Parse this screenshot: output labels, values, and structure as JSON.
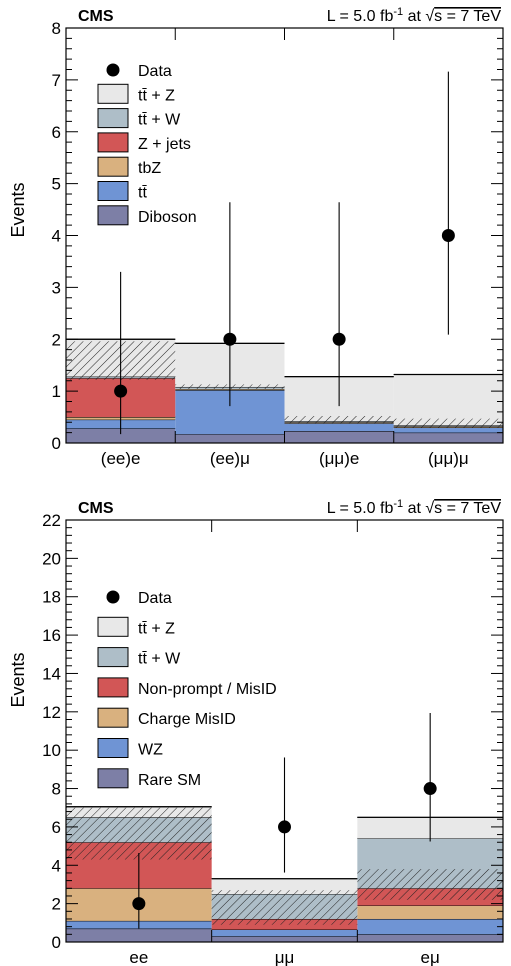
{
  "chart_data": [
    {
      "type": "bar",
      "stacked": true,
      "experiment": "CMS",
      "luminosity_label": "L =  5.0 fb-1 at √s = 7 TeV",
      "luminosity_parts": {
        "lumi_prefix": "L =  5.0 fb",
        "lumi_exp": "-1",
        "energy_prefix": " at ",
        "sqrt_sym": "√",
        "energy_suffix": "s = 7 TeV"
      },
      "ylabel": "Events",
      "ylim": [
        0,
        8
      ],
      "yticks": [
        "0",
        "1",
        "2",
        "3",
        "4",
        "5",
        "6",
        "7",
        "8"
      ],
      "categories": [
        "(ee)e",
        "(ee)μ",
        "(μμ)e",
        "(μμ)μ"
      ],
      "series": [
        {
          "name": "Diboson",
          "color": "#7d7fa6",
          "values": [
            0.28,
            0.17,
            0.23,
            0.2
          ]
        },
        {
          "name": "tt̄",
          "color": "#6f94d4",
          "values": [
            0.17,
            0.85,
            0.15,
            0.1
          ]
        },
        {
          "name": "tbZ",
          "color": "#d9b17f",
          "values": [
            0.05,
            0.02,
            0.02,
            0.02
          ]
        },
        {
          "name": "Z + jets",
          "color": "#d25656",
          "values": [
            0.75,
            0.0,
            0.0,
            0.0
          ]
        },
        {
          "name": "tt̄ + W",
          "color": "#aebec8",
          "values": [
            0.03,
            0.04,
            0.02,
            0.02
          ]
        },
        {
          "name": "tt̄ + Z",
          "color": "#e8e8e8",
          "values": [
            0.72,
            0.84,
            0.86,
            0.98
          ]
        }
      ],
      "uncertainty_band": {
        "low": [
          1.22,
          1.03,
          0.38,
          0.3
        ],
        "high": [
          1.96,
          1.13,
          0.52,
          0.47
        ]
      },
      "data": {
        "name": "Data",
        "values": [
          1,
          2,
          2,
          4
        ],
        "err_low": [
          0.83,
          1.29,
          1.29,
          1.91
        ],
        "err_high": [
          2.3,
          2.64,
          2.64,
          3.16
        ]
      },
      "legend_order": [
        "Data",
        "tt̄ + Z",
        "tt̄ + W",
        "Z + jets",
        "tbZ",
        "tt̄",
        "Diboson"
      ],
      "legend_position": "top-left"
    },
    {
      "type": "bar",
      "stacked": true,
      "experiment": "CMS",
      "luminosity_label": "L = 5.0 fb-1 at √s = 7 TeV",
      "luminosity_parts": {
        "lumi_prefix": "L = 5.0 fb",
        "lumi_exp": "-1",
        "energy_prefix": " at ",
        "sqrt_sym": "√",
        "energy_suffix": "s = 7 TeV"
      },
      "ylabel": "Events",
      "ylim": [
        0,
        22
      ],
      "yticks": [
        "0",
        "2",
        "4",
        "6",
        "8",
        "10",
        "12",
        "14",
        "16",
        "18",
        "20",
        "22"
      ],
      "categories": [
        "ee",
        "μμ",
        "eμ"
      ],
      "series": [
        {
          "name": "Rare SM",
          "color": "#7d7fa6",
          "values": [
            0.7,
            0.3,
            0.4
          ]
        },
        {
          "name": "WZ",
          "color": "#6f94d4",
          "values": [
            0.4,
            0.35,
            0.8
          ]
        },
        {
          "name": "Charge MisID",
          "color": "#d9b17f",
          "values": [
            1.7,
            0.0,
            0.7
          ]
        },
        {
          "name": "Non-prompt / MisID",
          "color": "#d25656",
          "values": [
            2.4,
            0.55,
            0.9
          ]
        },
        {
          "name": "tt̄ + W",
          "color": "#aebec8",
          "values": [
            1.3,
            1.3,
            2.6
          ]
        },
        {
          "name": "tt̄ + Z",
          "color": "#e8e8e8",
          "values": [
            0.55,
            0.8,
            1.1
          ]
        }
      ],
      "uncertainty_band": {
        "low": [
          4.3,
          0.9,
          2.2
        ],
        "high": [
          7.0,
          2.7,
          3.8
        ]
      },
      "data": {
        "name": "Data",
        "values": [
          2,
          6,
          8
        ],
        "err_low": [
          1.29,
          2.38,
          2.76
        ],
        "err_high": [
          2.64,
          3.62,
          3.94
        ]
      },
      "legend_order": [
        "Data",
        "tt̄ + Z",
        "tt̄ + W",
        "Non-prompt / MisID",
        "Charge MisID",
        "WZ",
        "Rare SM"
      ],
      "legend_position": "top-left"
    }
  ]
}
